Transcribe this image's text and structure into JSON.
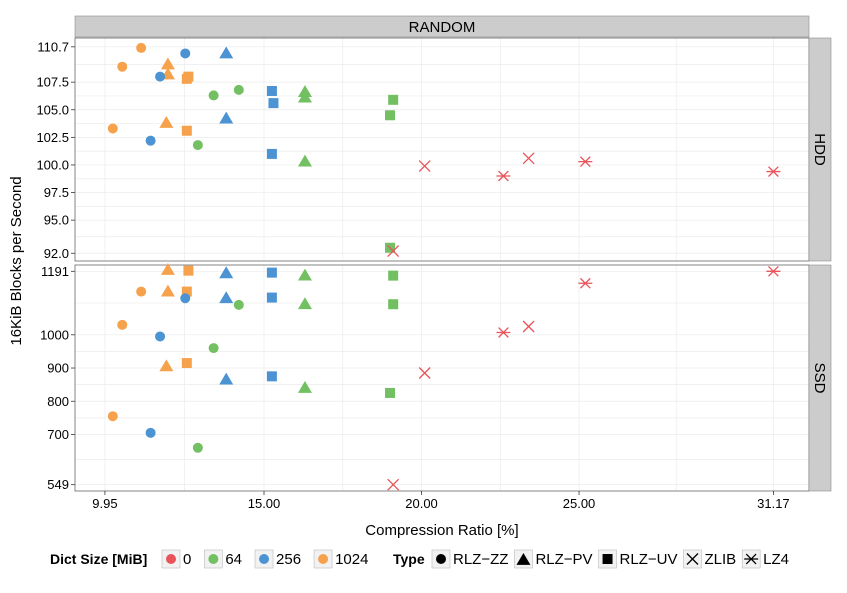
{
  "chart_data": {
    "type": "scatter",
    "title": "RANDOM",
    "xlabel": "Compression Ratio [%]",
    "ylabel": "16KiB Blocks per Second",
    "x_ticks": [
      "9.95",
      "15.00",
      "20.00",
      "25.00",
      "31.17"
    ],
    "x_tick_values": [
      9.95,
      15.0,
      20.0,
      25.0,
      31.17
    ],
    "xlim": [
      9.0,
      32.3
    ],
    "panels": [
      {
        "name": "HDD",
        "ylim": [
          91.3,
          111.5
        ],
        "y_ticks": [
          "110.7",
          "107.5",
          "105.0",
          "102.5",
          "100.0",
          "97.5",
          "95.0",
          "92.0"
        ],
        "y_tick_values": [
          110.7,
          107.5,
          105.0,
          102.5,
          100.0,
          97.5,
          95.0,
          92.0
        ],
        "points": [
          {
            "x": 10.2,
            "y": 103.3,
            "dict": "1024",
            "type": "RLZ-ZZ"
          },
          {
            "x": 10.5,
            "y": 108.9,
            "dict": "1024",
            "type": "RLZ-ZZ"
          },
          {
            "x": 11.1,
            "y": 110.6,
            "dict": "1024",
            "type": "RLZ-ZZ"
          },
          {
            "x": 11.95,
            "y": 109.1,
            "dict": "1024",
            "type": "RLZ-PV"
          },
          {
            "x": 11.95,
            "y": 108.2,
            "dict": "1024",
            "type": "RLZ-PV"
          },
          {
            "x": 11.9,
            "y": 103.8,
            "dict": "1024",
            "type": "RLZ-PV"
          },
          {
            "x": 12.6,
            "y": 108.0,
            "dict": "1024",
            "type": "RLZ-UV"
          },
          {
            "x": 12.55,
            "y": 107.8,
            "dict": "1024",
            "type": "RLZ-UV"
          },
          {
            "x": 12.55,
            "y": 103.1,
            "dict": "1024",
            "type": "RLZ-UV"
          },
          {
            "x": 12.5,
            "y": 110.1,
            "dict": "256",
            "type": "RLZ-ZZ"
          },
          {
            "x": 11.7,
            "y": 108.0,
            "dict": "256",
            "type": "RLZ-ZZ"
          },
          {
            "x": 11.4,
            "y": 102.2,
            "dict": "256",
            "type": "RLZ-ZZ"
          },
          {
            "x": 13.8,
            "y": 110.1,
            "dict": "256",
            "type": "RLZ-PV"
          },
          {
            "x": 13.8,
            "y": 104.2,
            "dict": "256",
            "type": "RLZ-PV"
          },
          {
            "x": 15.25,
            "y": 106.7,
            "dict": "256",
            "type": "RLZ-UV"
          },
          {
            "x": 15.3,
            "y": 105.6,
            "dict": "256",
            "type": "RLZ-UV"
          },
          {
            "x": 15.25,
            "y": 101.0,
            "dict": "256",
            "type": "RLZ-UV"
          },
          {
            "x": 14.2,
            "y": 106.8,
            "dict": "64",
            "type": "RLZ-ZZ"
          },
          {
            "x": 13.4,
            "y": 106.3,
            "dict": "64",
            "type": "RLZ-ZZ"
          },
          {
            "x": 12.9,
            "y": 101.8,
            "dict": "64",
            "type": "RLZ-ZZ"
          },
          {
            "x": 16.3,
            "y": 106.6,
            "dict": "64",
            "type": "RLZ-PV"
          },
          {
            "x": 16.3,
            "y": 106.1,
            "dict": "64",
            "type": "RLZ-PV"
          },
          {
            "x": 16.3,
            "y": 100.3,
            "dict": "64",
            "type": "RLZ-PV"
          },
          {
            "x": 19.1,
            "y": 105.9,
            "dict": "64",
            "type": "RLZ-UV"
          },
          {
            "x": 19.0,
            "y": 104.5,
            "dict": "64",
            "type": "RLZ-UV"
          },
          {
            "x": 19.0,
            "y": 92.5,
            "dict": "64",
            "type": "RLZ-UV"
          },
          {
            "x": 20.1,
            "y": 99.9,
            "dict": "0",
            "type": "ZLIB"
          },
          {
            "x": 23.4,
            "y": 100.6,
            "dict": "0",
            "type": "ZLIB"
          },
          {
            "x": 19.1,
            "y": 92.2,
            "dict": "0",
            "type": "ZLIB"
          },
          {
            "x": 22.6,
            "y": 99.0,
            "dict": "0",
            "type": "LZ4"
          },
          {
            "x": 25.2,
            "y": 100.3,
            "dict": "0",
            "type": "LZ4"
          },
          {
            "x": 31.17,
            "y": 99.4,
            "dict": "0",
            "type": "LZ4"
          }
        ]
      },
      {
        "name": "SSD",
        "ylim": [
          530,
          1210
        ],
        "y_ticks": [
          "1191",
          "1000",
          "900",
          "800",
          "700",
          "549"
        ],
        "y_tick_values": [
          1191,
          1000,
          900,
          800,
          700,
          549
        ],
        "points": [
          {
            "x": 10.2,
            "y": 755,
            "dict": "1024",
            "type": "RLZ-ZZ"
          },
          {
            "x": 10.5,
            "y": 1030,
            "dict": "1024",
            "type": "RLZ-ZZ"
          },
          {
            "x": 11.1,
            "y": 1130,
            "dict": "1024",
            "type": "RLZ-ZZ"
          },
          {
            "x": 11.95,
            "y": 1195,
            "dict": "1024",
            "type": "RLZ-PV"
          },
          {
            "x": 11.95,
            "y": 1130,
            "dict": "1024",
            "type": "RLZ-PV"
          },
          {
            "x": 11.9,
            "y": 905,
            "dict": "1024",
            "type": "RLZ-PV"
          },
          {
            "x": 12.6,
            "y": 1193,
            "dict": "1024",
            "type": "RLZ-UV"
          },
          {
            "x": 12.55,
            "y": 1130,
            "dict": "1024",
            "type": "RLZ-UV"
          },
          {
            "x": 12.55,
            "y": 915,
            "dict": "1024",
            "type": "RLZ-UV"
          },
          {
            "x": 12.5,
            "y": 1110,
            "dict": "256",
            "type": "RLZ-ZZ"
          },
          {
            "x": 11.7,
            "y": 995,
            "dict": "256",
            "type": "RLZ-ZZ"
          },
          {
            "x": 11.4,
            "y": 705,
            "dict": "256",
            "type": "RLZ-ZZ"
          },
          {
            "x": 13.8,
            "y": 1185,
            "dict": "256",
            "type": "RLZ-PV"
          },
          {
            "x": 13.8,
            "y": 1110,
            "dict": "256",
            "type": "RLZ-PV"
          },
          {
            "x": 13.8,
            "y": 865,
            "dict": "256",
            "type": "RLZ-PV"
          },
          {
            "x": 15.25,
            "y": 1187,
            "dict": "256",
            "type": "RLZ-UV"
          },
          {
            "x": 15.25,
            "y": 1112,
            "dict": "256",
            "type": "RLZ-UV"
          },
          {
            "x": 15.25,
            "y": 875,
            "dict": "256",
            "type": "RLZ-UV"
          },
          {
            "x": 14.2,
            "y": 1090,
            "dict": "64",
            "type": "RLZ-ZZ"
          },
          {
            "x": 13.4,
            "y": 960,
            "dict": "64",
            "type": "RLZ-ZZ"
          },
          {
            "x": 12.9,
            "y": 660,
            "dict": "64",
            "type": "RLZ-ZZ"
          },
          {
            "x": 16.3,
            "y": 1178,
            "dict": "64",
            "type": "RLZ-PV"
          },
          {
            "x": 16.3,
            "y": 1092,
            "dict": "64",
            "type": "RLZ-PV"
          },
          {
            "x": 16.3,
            "y": 840,
            "dict": "64",
            "type": "RLZ-PV"
          },
          {
            "x": 19.1,
            "y": 1178,
            "dict": "64",
            "type": "RLZ-UV"
          },
          {
            "x": 19.1,
            "y": 1092,
            "dict": "64",
            "type": "RLZ-UV"
          },
          {
            "x": 19.0,
            "y": 825,
            "dict": "64",
            "type": "RLZ-UV"
          },
          {
            "x": 20.1,
            "y": 885,
            "dict": "0",
            "type": "ZLIB"
          },
          {
            "x": 23.4,
            "y": 1025,
            "dict": "0",
            "type": "ZLIB"
          },
          {
            "x": 19.1,
            "y": 549,
            "dict": "0",
            "type": "ZLIB"
          },
          {
            "x": 22.6,
            "y": 1007,
            "dict": "0",
            "type": "LZ4"
          },
          {
            "x": 25.2,
            "y": 1155,
            "dict": "0",
            "type": "LZ4"
          },
          {
            "x": 31.17,
            "y": 1191,
            "dict": "0",
            "type": "LZ4"
          }
        ]
      }
    ],
    "legend": {
      "placement": "bottom",
      "dict_title": "Dict Size [MiB]",
      "dict_entries": [
        {
          "label": "0",
          "color": "#e8545a"
        },
        {
          "label": "64",
          "color": "#72c061"
        },
        {
          "label": "256",
          "color": "#4b93d3"
        },
        {
          "label": "1024",
          "color": "#f6a24c"
        }
      ],
      "type_title": "Type",
      "type_entries": [
        {
          "label": "RLZ−ZZ",
          "shape": "circle"
        },
        {
          "label": "RLZ−PV",
          "shape": "triangle"
        },
        {
          "label": "RLZ−UV",
          "shape": "square"
        },
        {
          "label": "ZLIB",
          "shape": "cross"
        },
        {
          "label": "LZ4",
          "shape": "asterisk"
        }
      ]
    },
    "colors": {
      "0": "#e8545a",
      "64": "#72c061",
      "256": "#4b93d3",
      "1024": "#f6a24c",
      "strip": "#cccccc",
      "grid": "#ebebeb"
    }
  }
}
